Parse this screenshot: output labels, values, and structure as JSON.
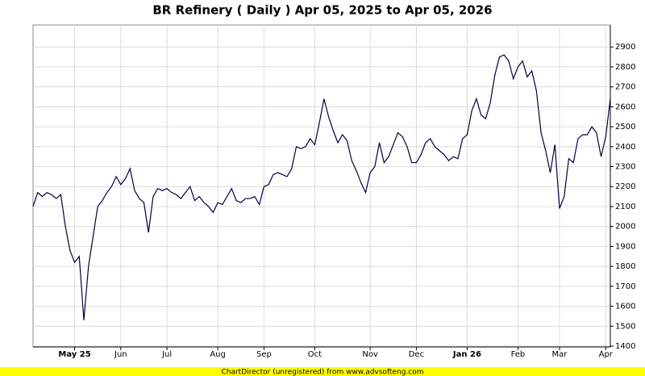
{
  "chart_data": {
    "type": "line",
    "title": "BR Refinery ( Daily ) Apr 05, 2025 to Apr 05, 2026",
    "footer": "ChartDirector (unregistered) from www.advsofteng.com",
    "categories": [
      null,
      null,
      null,
      null,
      null,
      null,
      null,
      null,
      null,
      "May 25",
      null,
      null,
      null,
      null,
      null,
      null,
      null,
      null,
      null,
      "Jun",
      null,
      null,
      null,
      null,
      null,
      null,
      null,
      null,
      null,
      "Jul",
      null,
      null,
      null,
      null,
      null,
      null,
      null,
      null,
      null,
      null,
      "Aug",
      null,
      null,
      null,
      null,
      null,
      null,
      null,
      null,
      null,
      "Sep",
      null,
      null,
      null,
      null,
      null,
      null,
      null,
      null,
      null,
      null,
      "Oct",
      null,
      null,
      null,
      null,
      null,
      null,
      null,
      null,
      null,
      null,
      null,
      "Nov",
      null,
      null,
      null,
      null,
      null,
      null,
      null,
      null,
      null,
      "Dec",
      null,
      null,
      null,
      null,
      null,
      null,
      null,
      null,
      null,
      null,
      "Jan 26",
      null,
      null,
      null,
      null,
      null,
      null,
      null,
      null,
      null,
      null,
      "Feb",
      null,
      null,
      null,
      null,
      null,
      null,
      null,
      null,
      "Mar",
      null,
      null,
      null,
      null,
      null,
      null,
      null,
      null,
      null,
      "Apr",
      null
    ],
    "series": [
      {
        "name": "BR Refinery",
        "color": "#000040",
        "values": [
          2100,
          2170,
          2150,
          2170,
          2160,
          2140,
          2160,
          2000,
          1880,
          1820,
          1850,
          1530,
          1800,
          1950,
          2100,
          2130,
          2170,
          2200,
          2250,
          2210,
          2240,
          2290,
          2180,
          2140,
          2120,
          1970,
          2150,
          2190,
          2180,
          2190,
          2170,
          2160,
          2140,
          2170,
          2200,
          2130,
          2150,
          2120,
          2100,
          2070,
          2120,
          2110,
          2150,
          2190,
          2130,
          2120,
          2140,
          2140,
          2150,
          2110,
          2200,
          2210,
          2260,
          2270,
          2260,
          2250,
          2290,
          2400,
          2390,
          2400,
          2440,
          2410,
          2520,
          2640,
          2550,
          2480,
          2420,
          2460,
          2430,
          2330,
          2280,
          2220,
          2170,
          2270,
          2300,
          2420,
          2320,
          2350,
          2410,
          2470,
          2450,
          2400,
          2320,
          2320,
          2360,
          2420,
          2440,
          2400,
          2380,
          2360,
          2330,
          2350,
          2340,
          2440,
          2460,
          2580,
          2640,
          2560,
          2540,
          2620,
          2760,
          2850,
          2860,
          2830,
          2740,
          2800,
          2830,
          2750,
          2780,
          2680,
          2470,
          2380,
          2270,
          2410,
          2090,
          2150,
          2340,
          2320,
          2440,
          2460,
          2460,
          2500,
          2470,
          2350,
          2450,
          2640
        ]
      }
    ],
    "ylim": [
      1396,
      3010
    ],
    "yticks": [
      1400,
      1500,
      1600,
      1700,
      1800,
      1900,
      2000,
      2100,
      2200,
      2300,
      2400,
      2500,
      2600,
      2700,
      2800,
      2900
    ],
    "grid": true
  }
}
